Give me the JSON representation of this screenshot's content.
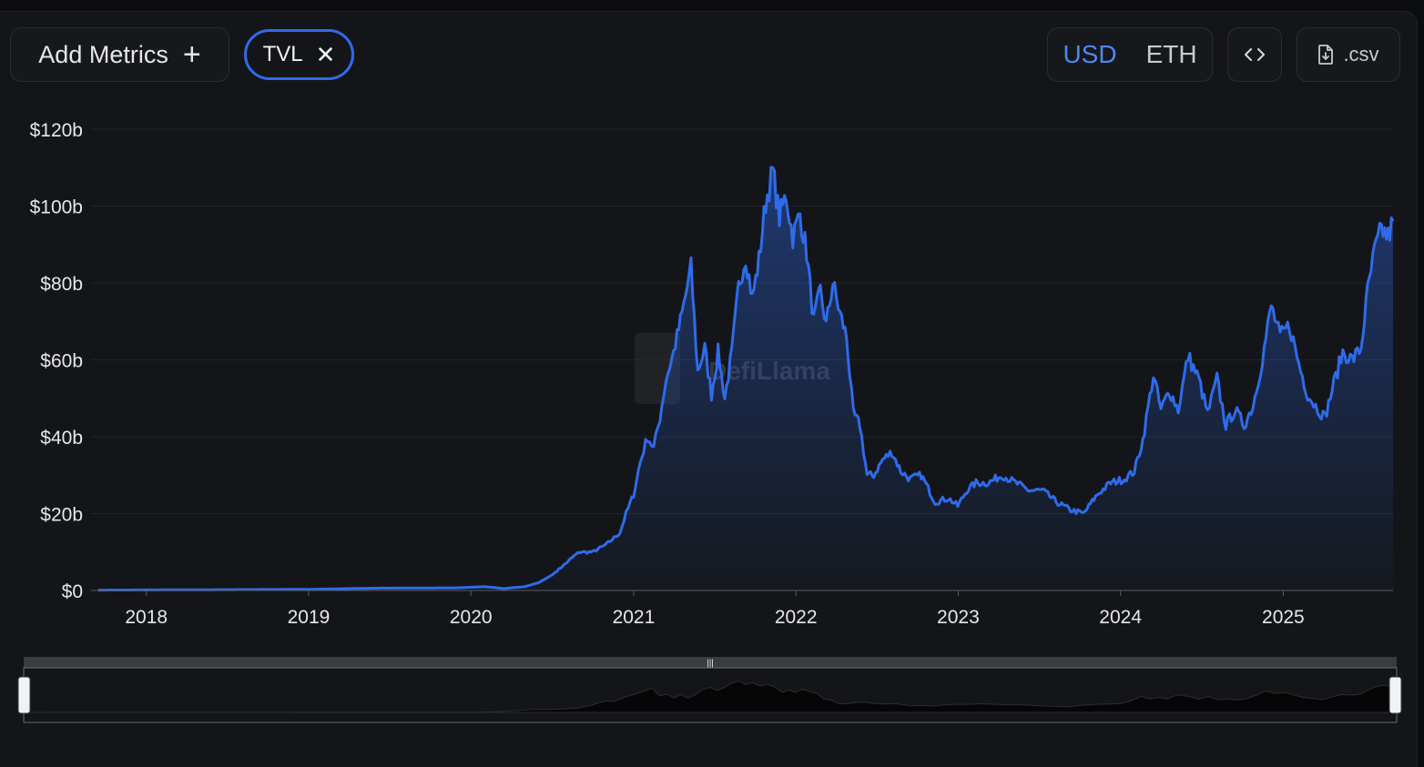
{
  "toolbar": {
    "add_metrics_label": "Add Metrics",
    "metric_chip_label": "TVL",
    "currency_options": [
      "USD",
      "ETH"
    ],
    "currency_selected": "USD",
    "csv_label": ".csv",
    "icons": {
      "add": "plus-icon",
      "remove": "close-icon",
      "embed": "code-icon",
      "download": "file-download-icon"
    }
  },
  "watermark": "DefiLlama",
  "colors": {
    "line": "#2f6bea",
    "accent": "#4f88f0",
    "background": "#141518"
  },
  "chart_data": {
    "type": "area",
    "title": "",
    "xlabel": "",
    "ylabel": "",
    "series": [
      {
        "name": "TVL",
        "color": "#2f6bea"
      }
    ],
    "x_ticks": [
      "2018",
      "2019",
      "2020",
      "2021",
      "2022",
      "2023",
      "2024",
      "2025"
    ],
    "y_ticks": [
      "$0",
      "$20b",
      "$40b",
      "$60b",
      "$80b",
      "$100b",
      "$120b"
    ],
    "ylim": [
      0,
      120
    ],
    "xlim": [
      "2017-09-15",
      "2025-09-05"
    ],
    "unit": "$b",
    "grid": true,
    "points": [
      [
        "2017-09-15",
        0.1
      ],
      [
        "2018-06-01",
        0.2
      ],
      [
        "2019-01-01",
        0.3
      ],
      [
        "2019-06-01",
        0.6
      ],
      [
        "2019-12-01",
        0.7
      ],
      [
        "2020-02-01",
        1.0
      ],
      [
        "2020-03-15",
        0.5
      ],
      [
        "2020-05-01",
        1.0
      ],
      [
        "2020-06-01",
        2.0
      ],
      [
        "2020-07-01",
        4.0
      ],
      [
        "2020-08-01",
        7.0
      ],
      [
        "2020-08-20",
        9.0
      ],
      [
        "2020-09-01",
        10.0
      ],
      [
        "2020-10-01",
        10.0
      ],
      [
        "2020-11-01",
        12.0
      ],
      [
        "2020-12-01",
        15.0
      ],
      [
        "2020-12-15",
        20.0
      ],
      [
        "2021-01-01",
        25.0
      ],
      [
        "2021-01-15",
        33.0
      ],
      [
        "2021-02-01",
        40.0
      ],
      [
        "2021-02-15",
        37.0
      ],
      [
        "2021-03-01",
        45.0
      ],
      [
        "2021-03-15",
        55.0
      ],
      [
        "2021-04-01",
        62.0
      ],
      [
        "2021-04-20",
        72.0
      ],
      [
        "2021-05-10",
        84.0
      ],
      [
        "2021-05-25",
        57.0
      ],
      [
        "2021-06-10",
        63.0
      ],
      [
        "2021-06-25",
        51.0
      ],
      [
        "2021-07-10",
        62.0
      ],
      [
        "2021-07-25",
        50.0
      ],
      [
        "2021-08-10",
        62.0
      ],
      [
        "2021-08-25",
        79.0
      ],
      [
        "2021-09-10",
        87.0
      ],
      [
        "2021-09-25",
        76.0
      ],
      [
        "2021-10-10",
        86.0
      ],
      [
        "2021-10-25",
        101.0
      ],
      [
        "2021-11-10",
        109.0
      ],
      [
        "2021-11-25",
        97.0
      ],
      [
        "2021-12-10",
        103.0
      ],
      [
        "2021-12-25",
        92.0
      ],
      [
        "2022-01-10",
        98.0
      ],
      [
        "2022-01-25",
        88.0
      ],
      [
        "2022-02-10",
        70.0
      ],
      [
        "2022-02-25",
        78.0
      ],
      [
        "2022-03-10",
        69.0
      ],
      [
        "2022-03-25",
        80.0
      ],
      [
        "2022-04-10",
        72.0
      ],
      [
        "2022-04-25",
        66.0
      ],
      [
        "2022-05-10",
        46.0
      ],
      [
        "2022-05-25",
        43.0
      ],
      [
        "2022-06-10",
        30.0
      ],
      [
        "2022-06-25",
        30.0
      ],
      [
        "2022-07-15",
        34.0
      ],
      [
        "2022-08-05",
        36.0
      ],
      [
        "2022-08-25",
        31.0
      ],
      [
        "2022-09-15",
        29.0
      ],
      [
        "2022-10-10",
        30.0
      ],
      [
        "2022-11-10",
        23.0
      ],
      [
        "2022-12-10",
        24.0
      ],
      [
        "2022-12-31",
        22.0
      ],
      [
        "2023-01-20",
        26.0
      ],
      [
        "2023-02-10",
        28.0
      ],
      [
        "2023-03-10",
        28.0
      ],
      [
        "2023-04-10",
        30.0
      ],
      [
        "2023-05-10",
        28.0
      ],
      [
        "2023-06-10",
        26.0
      ],
      [
        "2023-07-10",
        26.0
      ],
      [
        "2023-08-10",
        23.0
      ],
      [
        "2023-09-10",
        21.0
      ],
      [
        "2023-10-10",
        20.0
      ],
      [
        "2023-11-10",
        25.0
      ],
      [
        "2023-12-10",
        28.0
      ],
      [
        "2024-01-10",
        29.0
      ],
      [
        "2024-02-01",
        31.0
      ],
      [
        "2024-02-20",
        39.0
      ],
      [
        "2024-03-15",
        56.0
      ],
      [
        "2024-04-01",
        47.0
      ],
      [
        "2024-04-20",
        52.0
      ],
      [
        "2024-05-10",
        47.0
      ],
      [
        "2024-06-01",
        61.0
      ],
      [
        "2024-06-25",
        55.0
      ],
      [
        "2024-07-15",
        46.0
      ],
      [
        "2024-08-05",
        55.0
      ],
      [
        "2024-08-25",
        43.0
      ],
      [
        "2024-09-15",
        47.0
      ],
      [
        "2024-10-05",
        43.0
      ],
      [
        "2024-10-25",
        48.0
      ],
      [
        "2024-11-15",
        60.0
      ],
      [
        "2024-12-05",
        74.0
      ],
      [
        "2024-12-25",
        66.0
      ],
      [
        "2025-01-15",
        69.0
      ],
      [
        "2025-02-05",
        59.0
      ],
      [
        "2025-02-25",
        51.0
      ],
      [
        "2025-03-15",
        48.0
      ],
      [
        "2025-04-05",
        45.0
      ],
      [
        "2025-04-25",
        54.0
      ],
      [
        "2025-05-15",
        62.0
      ],
      [
        "2025-06-05",
        60.0
      ],
      [
        "2025-06-25",
        63.0
      ],
      [
        "2025-07-10",
        78.0
      ],
      [
        "2025-07-25",
        88.0
      ],
      [
        "2025-08-10",
        94.0
      ],
      [
        "2025-08-25",
        92.0
      ],
      [
        "2025-09-05",
        96.0
      ]
    ]
  }
}
